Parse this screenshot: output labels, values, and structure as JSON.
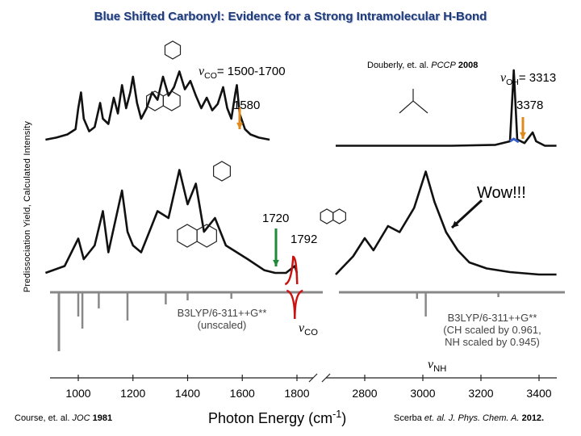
{
  "title": "Blue Shifted Carbonyl: Evidence for a Strong Intramolecular H-Bond",
  "chart_data": {
    "type": "line",
    "title": "Blue Shifted Carbonyl: Evidence for a Strong Intramolecular H-Bond",
    "ylabel": "Predissociation Yield, Calculated Intensity",
    "xlabel_main": "Photon Energy (cm",
    "xlabel_exp": "-1",
    "xlabel_end": ")",
    "x_ticks_left": [
      1000,
      1200,
      1400,
      1600,
      1800
    ],
    "x_ticks_right": [
      2800,
      3000,
      3200,
      3400
    ],
    "axis_break_between": [
      1800,
      2800
    ],
    "series": [
      {
        "name": "",
        "values": [
          [
            880,
            0.1
          ],
          [
            920,
            0.12
          ],
          [
            960,
            0.15
          ],
          [
            990,
            0.2
          ],
          [
            1000,
            0.4
          ],
          [
            1010,
            0.55
          ],
          [
            1020,
            0.3
          ],
          [
            1040,
            0.18
          ],
          [
            1060,
            0.22
          ],
          [
            1080,
            0.45
          ],
          [
            1090,
            0.3
          ],
          [
            1110,
            0.25
          ],
          [
            1130,
            0.5
          ],
          [
            1145,
            0.35
          ],
          [
            1160,
            0.62
          ],
          [
            1175,
            0.4
          ],
          [
            1190,
            0.55
          ],
          [
            1200,
            0.7
          ],
          [
            1215,
            0.45
          ],
          [
            1230,
            0.3
          ],
          [
            1250,
            0.4
          ],
          [
            1270,
            0.55
          ],
          [
            1290,
            0.48
          ],
          [
            1310,
            0.7
          ],
          [
            1330,
            0.52
          ],
          [
            1350,
            0.6
          ],
          [
            1370,
            0.75
          ],
          [
            1390,
            0.58
          ],
          [
            1410,
            0.66
          ],
          [
            1430,
            0.52
          ],
          [
            1450,
            0.4
          ],
          [
            1470,
            0.5
          ],
          [
            1490,
            0.38
          ],
          [
            1510,
            0.44
          ],
          [
            1530,
            0.6
          ],
          [
            1545,
            0.4
          ],
          [
            1560,
            0.3
          ],
          [
            1575,
            0.55
          ],
          [
            1580,
            0.62
          ],
          [
            1590,
            0.35
          ],
          [
            1610,
            0.2
          ],
          [
            1630,
            0.15
          ],
          [
            1660,
            0.12
          ],
          [
            1700,
            0.1
          ]
        ]
      },
      {
        "name": "",
        "values": [
          [
            2700,
            0.05
          ],
          [
            2900,
            0.05
          ],
          [
            3100,
            0.05
          ],
          [
            3250,
            0.06
          ],
          [
            3300,
            0.1
          ],
          [
            3313,
            0.9
          ],
          [
            3325,
            0.12
          ],
          [
            3350,
            0.08
          ],
          [
            3378,
            0.2
          ],
          [
            3390,
            0.1
          ],
          [
            3420,
            0.05
          ],
          [
            3460,
            0.05
          ]
        ]
      },
      {
        "name": "",
        "values": [
          [
            880,
            0.1
          ],
          [
            950,
            0.15
          ],
          [
            1000,
            0.35
          ],
          [
            1020,
            0.2
          ],
          [
            1060,
            0.3
          ],
          [
            1090,
            0.55
          ],
          [
            1110,
            0.25
          ],
          [
            1160,
            0.7
          ],
          [
            1180,
            0.4
          ],
          [
            1200,
            0.3
          ],
          [
            1230,
            0.25
          ],
          [
            1260,
            0.4
          ],
          [
            1290,
            0.55
          ],
          [
            1330,
            0.5
          ],
          [
            1370,
            0.85
          ],
          [
            1400,
            0.6
          ],
          [
            1430,
            0.75
          ],
          [
            1460,
            0.4
          ],
          [
            1500,
            0.5
          ],
          [
            1540,
            0.3
          ],
          [
            1580,
            0.25
          ],
          [
            1620,
            0.2
          ],
          [
            1680,
            0.12
          ],
          [
            1720,
            0.1
          ],
          [
            1760,
            0.1
          ],
          [
            1792,
            0.15
          ],
          [
            1800,
            0.1
          ]
        ]
      },
      {
        "name": "",
        "values": [
          [
            2700,
            0.1
          ],
          [
            2760,
            0.25
          ],
          [
            2800,
            0.4
          ],
          [
            2830,
            0.3
          ],
          [
            2880,
            0.5
          ],
          [
            2920,
            0.45
          ],
          [
            2970,
            0.65
          ],
          [
            3010,
            0.95
          ],
          [
            3040,
            0.7
          ],
          [
            3080,
            0.45
          ],
          [
            3120,
            0.3
          ],
          [
            3160,
            0.2
          ],
          [
            3220,
            0.15
          ],
          [
            3300,
            0.12
          ],
          [
            3400,
            0.1
          ],
          [
            3460,
            0.1
          ]
        ]
      }
    ],
    "annotations": {
      "nu_co_range": "1500-1700",
      "v1580": "1580",
      "v3378": "3378",
      "nu_oh_value": "3313",
      "v1720": "1720",
      "v1792": "1792",
      "wow": "Wow!!!",
      "calc_left_1": "B3LYP/6-311++G**",
      "calc_left_2": "(unscaled)",
      "calc_right_1": "B3LYP/6-311++G**",
      "calc_right_2": "(CH scaled by 0.961,",
      "calc_right_3": "NH scaled by 0.945)"
    }
  },
  "citations": {
    "douberly_prefix": "Douberly, et. al. ",
    "douberly_journal": "PCCP",
    "douberly_year": "2008",
    "course_prefix": "Course, et. al. ",
    "course_journal": "JOC",
    "course_year": "1981",
    "scerba_prefix": "Scerba ",
    "scerba_journal": "et. al. J. Phys. Chem. A.",
    "scerba_year": "2012."
  },
  "labels": {
    "nu": "ν",
    "sub_co": "CO",
    "sub_oh": "OH",
    "sub_nh": "NH",
    "equals_co": "= ",
    "equals_oh": "= "
  },
  "colors": {
    "title": "#1f3a78",
    "experiment": "#111111",
    "calc": "#888888",
    "red": "#cc1111",
    "green": "#1e8a3a",
    "orange": "#e08a1e",
    "blue": "#3a5fc8"
  }
}
